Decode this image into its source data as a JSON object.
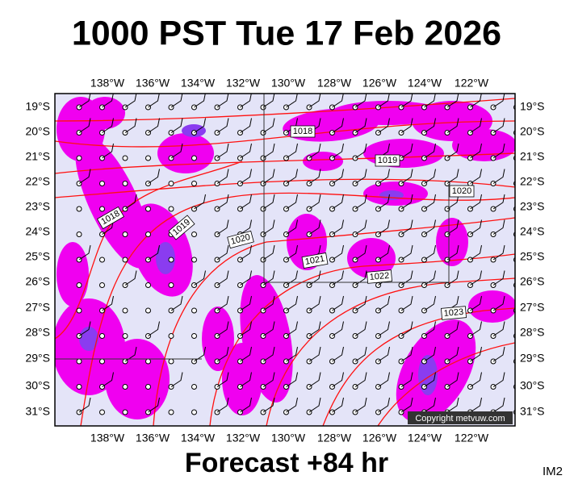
{
  "title": "1000 PST Tue 17 Feb 2026",
  "lon_labels": [
    "138°W",
    "136°W",
    "134°W",
    "132°W",
    "130°W",
    "128°W",
    "126°W",
    "124°W",
    "122°W"
  ],
  "lat_labels": [
    "19°S",
    "20°S",
    "21°S",
    "22°S",
    "23°S",
    "24°S",
    "25°S",
    "26°S",
    "27°S",
    "28°S",
    "29°S",
    "30°S",
    "31°S"
  ],
  "isobar_labels": [
    "1018",
    "1018",
    "1019",
    "1019",
    "1020",
    "1020",
    "1021",
    "1022",
    "1023"
  ],
  "copyright": "Copyright metvuw.com",
  "footer": "Forecast +84 hr",
  "corner_label": "IM2"
}
